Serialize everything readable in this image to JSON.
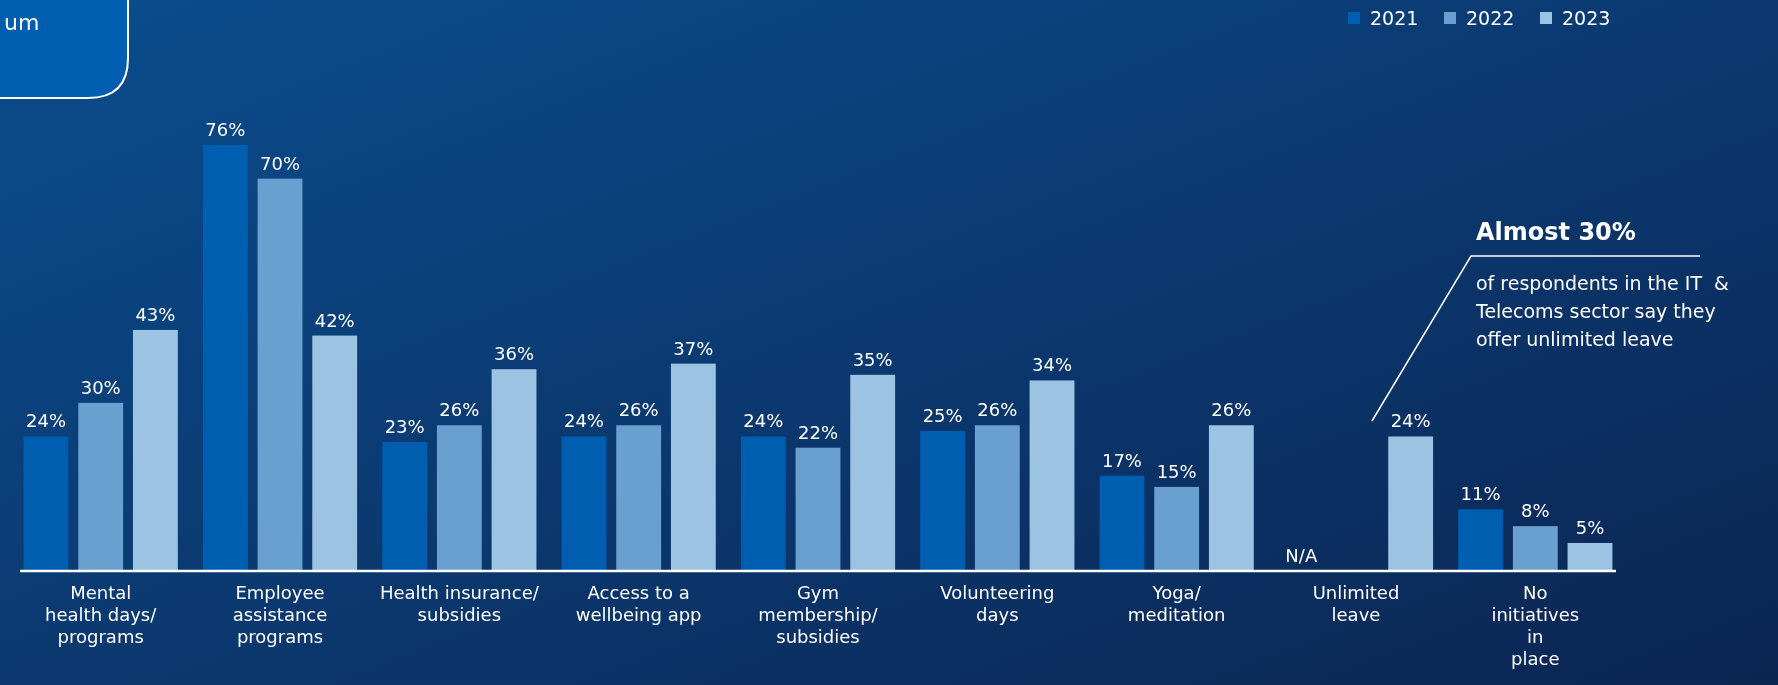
{
  "chart_data": {
    "type": "bar",
    "categories": [
      "Mental\nhealth days/\nprograms",
      "Employee\nassistance\nprograms",
      "Health insurance/\nsubsidies",
      "Access to a\nwellbeing app",
      "Gym\nmembership/\nsubsidies",
      "Volunteering\ndays",
      "Yoga/\nmeditation",
      "Unlimited\nleave",
      "No\ninitiatives\nin\nplace"
    ],
    "series": [
      {
        "name": "2021",
        "color": "#005eb0",
        "values": [
          24,
          76,
          23,
          24,
          24,
          25,
          17,
          null,
          11
        ],
        "value_labels": [
          "24%",
          "76%",
          "23%",
          "24%",
          "24%",
          "25%",
          "17%",
          "N/A",
          "11%"
        ]
      },
      {
        "name": "2022",
        "color": "#6aa0d0",
        "values": [
          30,
          70,
          26,
          26,
          22,
          26,
          15,
          null,
          8
        ],
        "value_labels": [
          "30%",
          "70%",
          "26%",
          "26%",
          "22%",
          "26%",
          "15%",
          null,
          "8%"
        ]
      },
      {
        "name": "2023",
        "color": "#9dc3e3",
        "values": [
          43,
          42,
          36,
          37,
          35,
          34,
          26,
          24,
          5
        ],
        "value_labels": [
          "43%",
          "42%",
          "36%",
          "37%",
          "35%",
          "34%",
          "26%",
          "24%",
          "5%"
        ]
      }
    ],
    "tick_labels": "x",
    "legend": "top right",
    "annotations": [
      "um",
      "Almost 30%",
      "of respondents in the IT  &\nTelecoms sector say they\noffer unlimited leave"
    ]
  }
}
